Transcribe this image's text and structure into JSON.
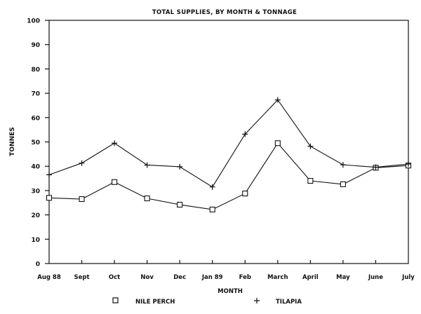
{
  "chart_data": {
    "type": "line",
    "title": "TOTAL SUPPLIES, BY MONTH & TONNAGE",
    "xlabel": "MONTH",
    "ylabel": "TONNES",
    "ylim": [
      0,
      100
    ],
    "yticks": [
      0,
      10,
      20,
      30,
      40,
      50,
      60,
      70,
      80,
      90,
      100
    ],
    "grid": false,
    "legend_position": "bottom",
    "categories": [
      "Aug 88",
      "Sept",
      "Oct",
      "Nov",
      "Dec",
      "Jan 89",
      "Feb",
      "March",
      "April",
      "May",
      "June",
      "July"
    ],
    "series": [
      {
        "name": "NILE PERCH",
        "marker": "square",
        "values": [
          27,
          26.5,
          33.5,
          26.8,
          24.2,
          22.2,
          28.8,
          49.5,
          34,
          32.6,
          39.4,
          40.3
        ]
      },
      {
        "name": "TILAPIA",
        "marker": "plus",
        "values": [
          36.5,
          41.3,
          49.5,
          40.5,
          39.8,
          31.5,
          53.2,
          67.3,
          48.2,
          40.6,
          39.6,
          40.9
        ]
      }
    ]
  },
  "legend": {
    "items": [
      {
        "symbol": "□",
        "label": "NILE PERCH"
      },
      {
        "symbol": "+",
        "label": "TILAPIA"
      }
    ]
  }
}
